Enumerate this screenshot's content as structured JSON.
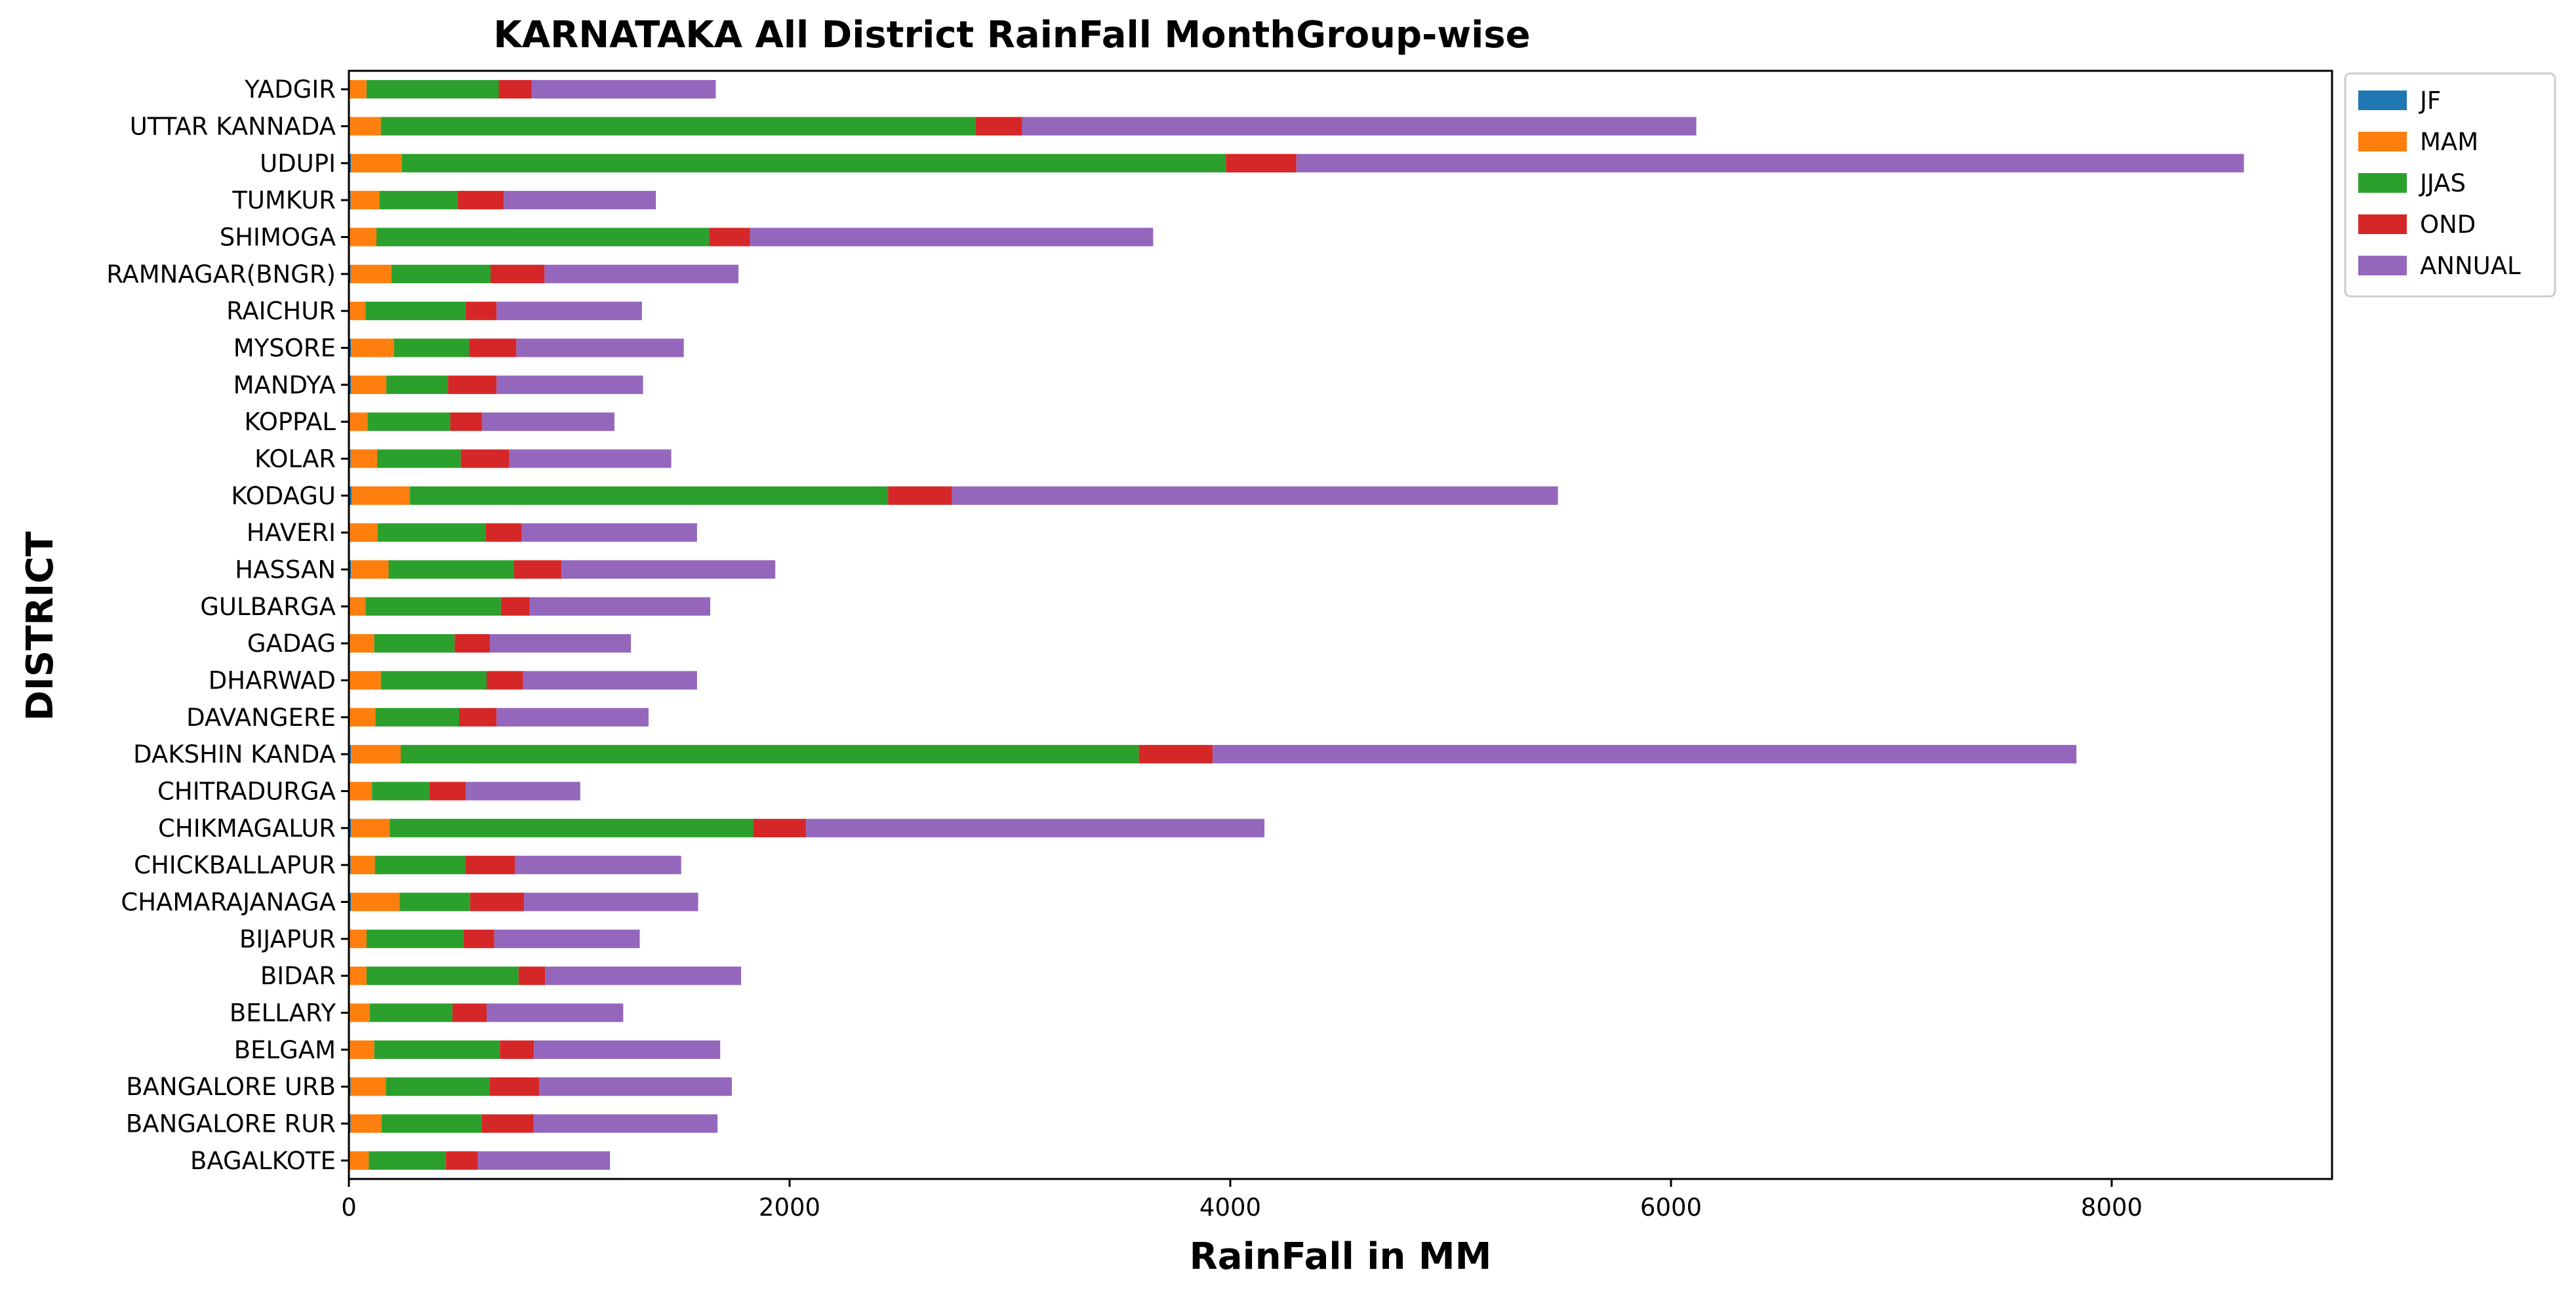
{
  "chart_data": {
    "type": "bar",
    "orientation": "horizontal",
    "stacked": true,
    "title": "KARNATAKA All District RainFall MonthGroup-wise",
    "xlabel": "RainFall in MM",
    "ylabel": "DISTRICT",
    "xlim": [
      0,
      9000
    ],
    "xticks": [
      0,
      2000,
      4000,
      6000,
      8000
    ],
    "grid": false,
    "legend_position": "upper-right-outside",
    "categories": [
      "BAGALKOTE",
      "BANGALORE RUR",
      "BANGALORE URB",
      "BELGAM",
      "BELLARY",
      "BIDAR",
      "BIJAPUR",
      "CHAMARAJANAGA",
      "CHICKBALLAPUR",
      "CHIKMAGALUR",
      "CHITRADURGA",
      "DAKSHIN KANDA",
      "DAVANGERE",
      "DHARWAD",
      "GADAG",
      "GULBARGA",
      "HASSAN",
      "HAVERI",
      "KODAGU",
      "KOLAR",
      "KOPPAL",
      "MANDYA",
      "MYSORE",
      "RAICHUR",
      "RAMNAGAR(BNGR)",
      "SHIMOGA",
      "TUMKUR",
      "UDUPI",
      "UTTAR KANNADA",
      "YADGIR"
    ],
    "series": [
      {
        "name": "JF",
        "color": "#1f77b4",
        "values": [
          5,
          8,
          8,
          5,
          5,
          5,
          5,
          10,
          8,
          10,
          5,
          10,
          5,
          5,
          5,
          5,
          10,
          5,
          12,
          8,
          5,
          10,
          10,
          5,
          8,
          5,
          8,
          10,
          5,
          5
        ]
      },
      {
        "name": "MAM",
        "color": "#ff7f0e",
        "values": [
          85,
          140,
          160,
          110,
          90,
          75,
          75,
          220,
          110,
          175,
          100,
          225,
          115,
          140,
          110,
          70,
          170,
          125,
          265,
          120,
          80,
          160,
          195,
          70,
          185,
          120,
          130,
          230,
          140,
          75
        ]
      },
      {
        "name": "JJAS",
        "color": "#2ca02c",
        "values": [
          350,
          455,
          470,
          570,
          375,
          690,
          440,
          320,
          410,
          1650,
          260,
          3350,
          380,
          480,
          365,
          615,
          570,
          490,
          2170,
          380,
          375,
          280,
          340,
          455,
          450,
          1510,
          355,
          3740,
          2700,
          600
        ]
      },
      {
        "name": "OND",
        "color": "#d62728",
        "values": [
          145,
          235,
          225,
          155,
          155,
          120,
          140,
          245,
          225,
          240,
          165,
          335,
          170,
          165,
          160,
          130,
          215,
          165,
          290,
          220,
          145,
          220,
          215,
          140,
          245,
          185,
          210,
          320,
          210,
          150
        ]
      },
      {
        "name": "ANNUAL",
        "color": "#9467bd",
        "values": [
          600,
          835,
          875,
          845,
          620,
          890,
          660,
          790,
          755,
          2080,
          520,
          3920,
          690,
          790,
          640,
          820,
          970,
          795,
          2750,
          735,
          600,
          665,
          760,
          660,
          880,
          1830,
          690,
          4300,
          3060,
          835
        ]
      }
    ]
  }
}
